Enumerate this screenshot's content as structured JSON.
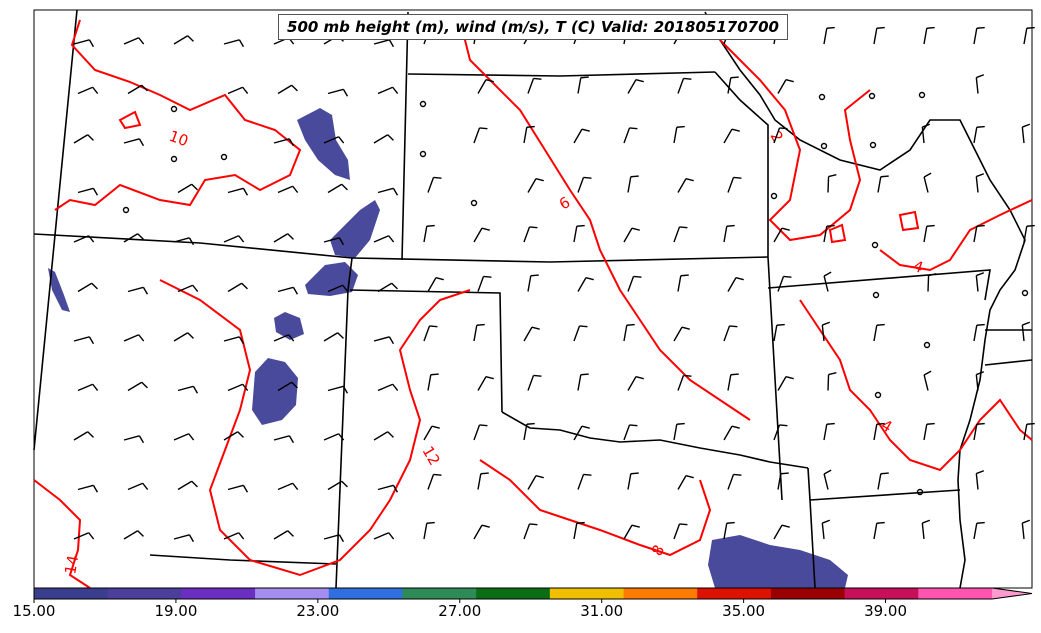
{
  "title": "500 mb height (m), wind (m/s), T (C) Valid: 201805170700",
  "contour_labels": [
    "10",
    "6",
    "2",
    "4",
    "4",
    "12",
    "8",
    "14"
  ],
  "colorbar": {
    "tick_labels": [
      "15.00",
      "19.00",
      "23.00",
      "27.00",
      "31.00",
      "35.00",
      "39.00"
    ],
    "ticks": [
      15,
      19,
      23,
      27,
      31,
      35,
      39
    ],
    "range": [
      15,
      42
    ],
    "colors": [
      "#3b3d8e",
      "#4c3f9c",
      "#6a2fc0",
      "#a58df0",
      "#2f6fe0",
      "#2e8b57",
      "#0b6e14",
      "#f0c000",
      "#ff7a00",
      "#dd1100",
      "#9b0000",
      "#c8105a",
      "#ff55b0",
      "#ff9ad0"
    ]
  },
  "colors": {
    "temperature_contour": "#ff0000",
    "state_boundary": "#000000",
    "wind_barb": "#000000",
    "wind_shading": "#4a4a9c"
  }
}
